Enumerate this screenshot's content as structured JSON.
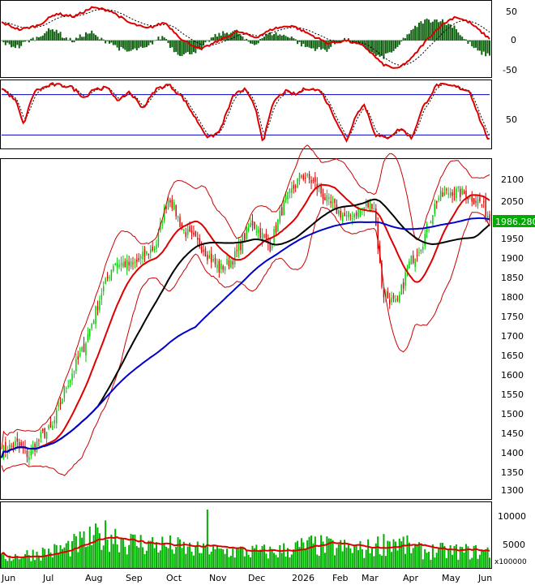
{
  "chart_data": [
    {
      "type": "line",
      "panel": "macd",
      "y_ticks": [
        "50",
        "0",
        "-50"
      ],
      "ylim": [
        -60,
        65
      ],
      "series": [],
      "colors": {
        "macd": "#dd0000",
        "signal": "#000000",
        "histogram": "#0c5f0c"
      }
    },
    {
      "type": "line",
      "panel": "stochastic",
      "y_ticks": [
        "50"
      ],
      "reference_lines": [
        80,
        20
      ],
      "ylim": [
        0,
        100
      ],
      "colors": {
        "k": "#dd0000",
        "d": "#000000",
        "reference": "#0000bb"
      }
    },
    {
      "type": "candlestick",
      "panel": "price",
      "y_ticks": [
        "2100",
        "2050",
        "2000",
        "1950",
        "1900",
        "1850",
        "1800",
        "1750",
        "1700",
        "1650",
        "1600",
        "1550",
        "1500",
        "1450",
        "1400",
        "1350",
        "1300"
      ],
      "ylim": [
        1280,
        2140
      ],
      "last_price": "1986.280",
      "colors": {
        "up": "#00cc00",
        "down": "#dd0000",
        "ma_fast": "#dd0000",
        "ma_mid": "#000000",
        "ma_slow": "#0000cc",
        "bollinger": "#cc0000",
        "price_tag": "#00aa00"
      }
    },
    {
      "type": "bar",
      "panel": "volume",
      "y_ticks": [
        "10000",
        "5000"
      ],
      "unit_label": "x100000",
      "ylim": [
        0,
        12000
      ],
      "colors": {
        "volume": "#00b000",
        "ma": "#dd0000"
      }
    }
  ],
  "x_axis": {
    "months": [
      "Jun",
      "Jul",
      "Aug",
      "Sep",
      "Oct",
      "Nov",
      "Dec",
      "2026",
      "Feb",
      "Mar",
      "Apr",
      "May",
      "Jun"
    ]
  }
}
